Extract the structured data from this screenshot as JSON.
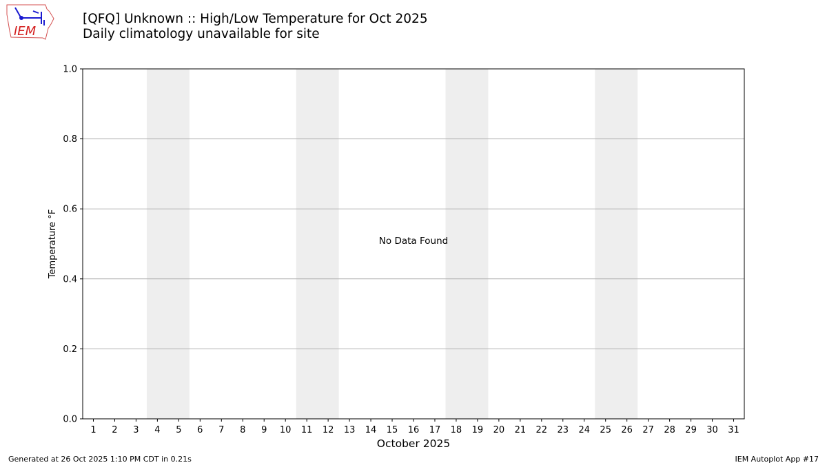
{
  "logo": {
    "text": "IEM",
    "icon": "iowa-state-outline-weather-station-logo"
  },
  "header": {
    "title": "[QFQ] Unknown :: High/Low Temperature for Oct 2025",
    "subtitle": "Daily climatology unavailable for site"
  },
  "chart_data": {
    "type": "line",
    "title": "[QFQ] Unknown :: High/Low Temperature for Oct 2025",
    "subtitle": "Daily climatology unavailable for site",
    "xlabel": "October 2025",
    "ylabel": "Temperature °F",
    "categories": [
      "1",
      "2",
      "3",
      "4",
      "5",
      "6",
      "7",
      "8",
      "9",
      "10",
      "11",
      "12",
      "13",
      "14",
      "15",
      "16",
      "17",
      "18",
      "19",
      "20",
      "21",
      "22",
      "23",
      "24",
      "25",
      "26",
      "27",
      "28",
      "29",
      "30",
      "31"
    ],
    "xlim": [
      0.5,
      31.5
    ],
    "ylim": [
      0,
      1
    ],
    "yticks": [
      "0.0",
      "0.2",
      "0.4",
      "0.6",
      "0.8",
      "1.0"
    ],
    "grid": "horizontal",
    "shaded_spans": [
      [
        3.5,
        5.5
      ],
      [
        10.5,
        12.5
      ],
      [
        17.5,
        19.5
      ],
      [
        24.5,
        26.5
      ]
    ],
    "shade_color": "#eeeeee",
    "series": [],
    "annotation": "No Data Found"
  },
  "footer": {
    "left": "Generated at 26 Oct 2025 1:10 PM CDT in 0.21s",
    "right": "IEM Autoplot App #17"
  }
}
